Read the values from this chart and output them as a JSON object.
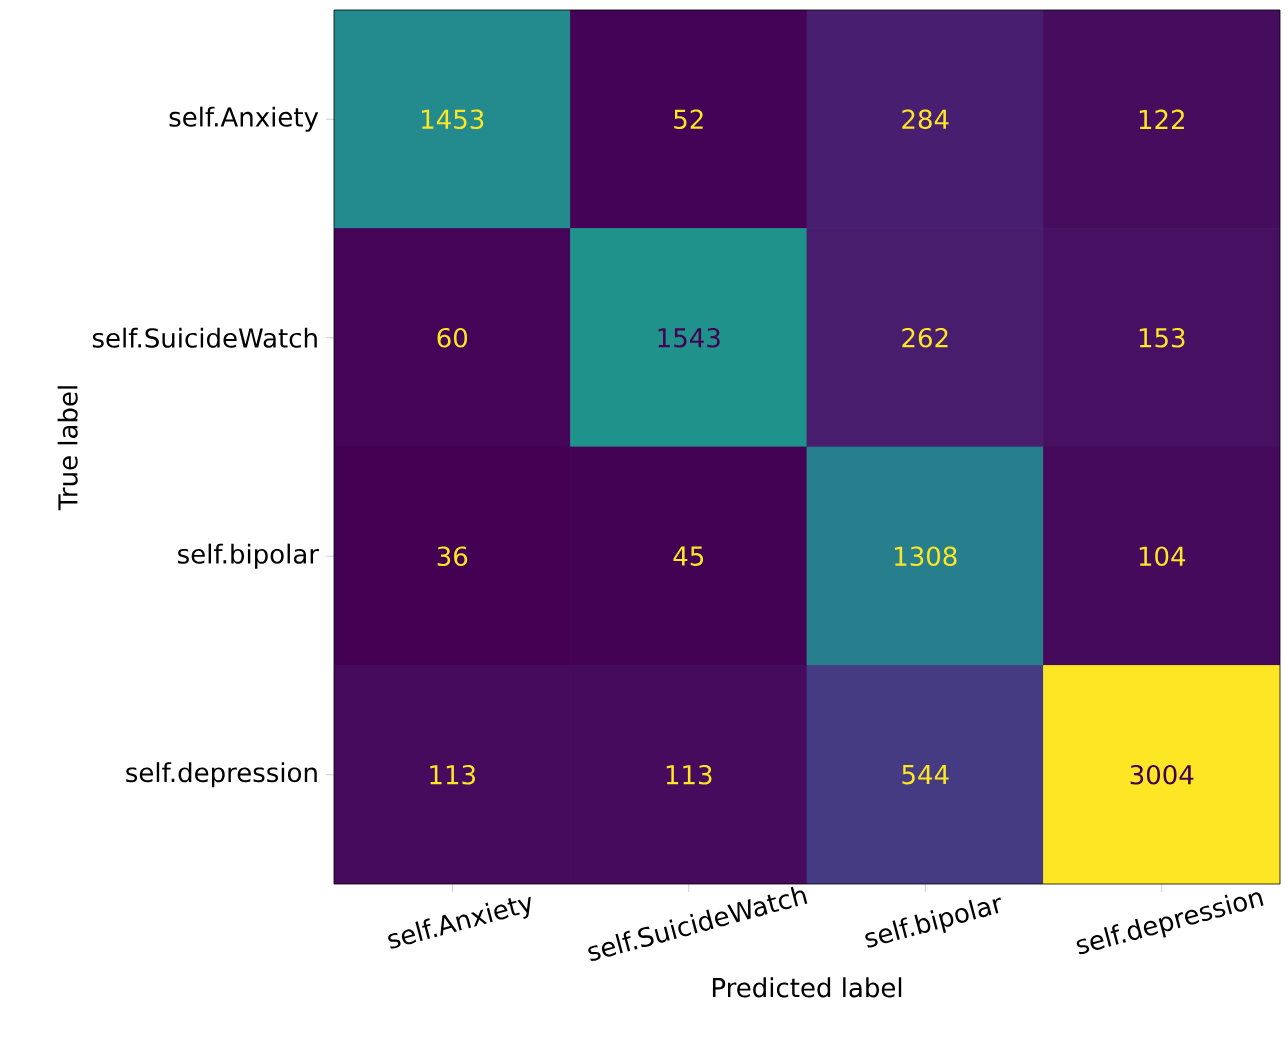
{
  "chart_data": {
    "type": "heatmap",
    "xlabel": "Predicted label",
    "ylabel": "True label",
    "categories": [
      "self.Anxiety",
      "self.SuicideWatch",
      "self.bipolar",
      "self.depression"
    ],
    "y_categories": [
      "self.Anxiety",
      "self.SuicideWatch",
      "self.bipolar",
      "self.depression"
    ],
    "cells": [
      [
        1453,
        52,
        284,
        122
      ],
      [
        60,
        1543,
        262,
        153
      ],
      [
        36,
        45,
        1308,
        104
      ],
      [
        113,
        113,
        544,
        3004
      ]
    ],
    "data_labels": true
  }
}
